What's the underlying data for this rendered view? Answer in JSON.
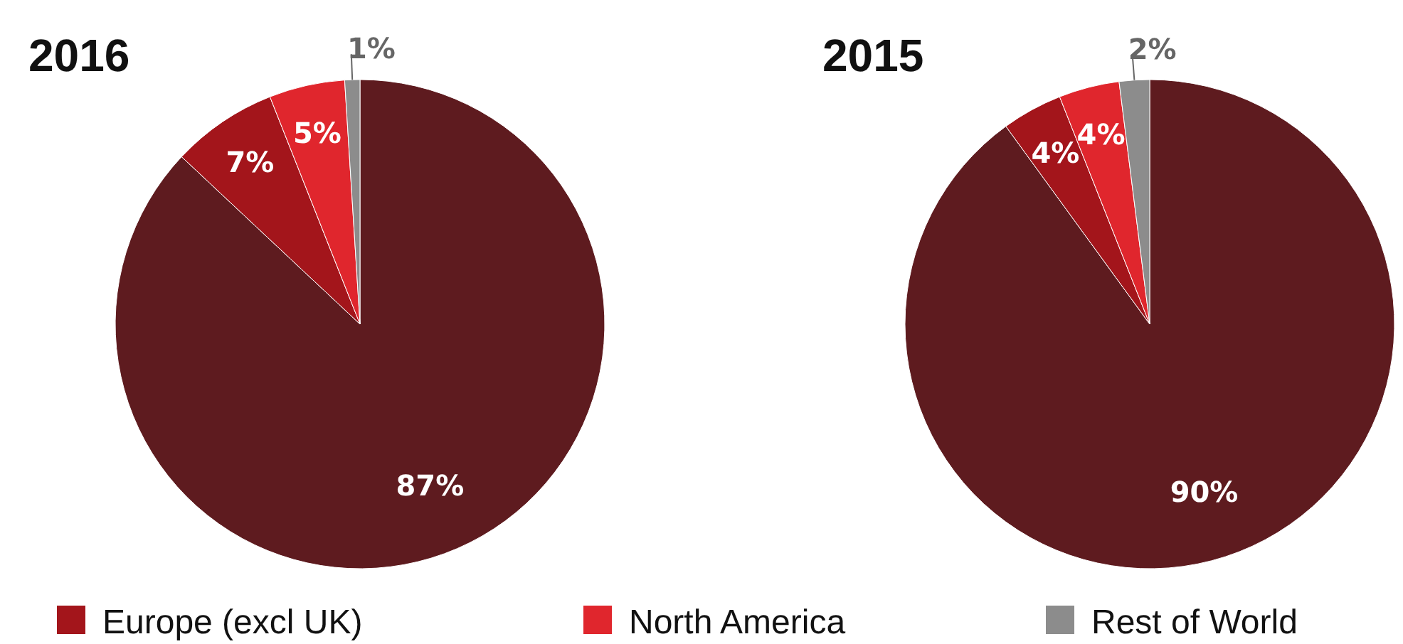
{
  "chart_data": [
    {
      "type": "pie",
      "title": "2016",
      "categories": [
        null,
        "Europe (excl UK)",
        "North America",
        "Rest of World"
      ],
      "values": [
        87,
        7,
        5,
        1
      ],
      "colors": [
        "#5e1b1f",
        "#a3151b",
        "#e0262d",
        "#8c8c8c"
      ],
      "value_labels": [
        "87%",
        "7%",
        "5%",
        "1%"
      ],
      "legend": "bottom"
    },
    {
      "type": "pie",
      "title": "2015",
      "categories": [
        null,
        null,
        null,
        null
      ],
      "values": [
        90,
        4,
        4,
        2
      ],
      "colors": [
        "#5e1b1f",
        "#a3151b",
        "#e0262d",
        "#8c8c8c"
      ],
      "value_labels": [
        "90%",
        "4%",
        "4%",
        "2%"
      ],
      "legend": false
    }
  ]
}
